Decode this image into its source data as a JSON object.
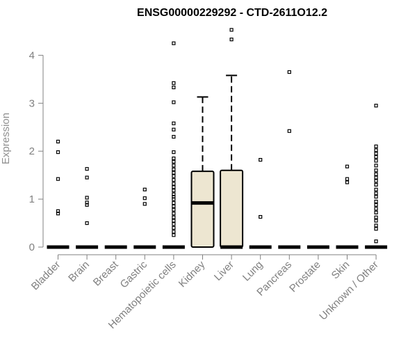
{
  "chart_data": {
    "type": "boxplot",
    "title": "ENSG00000229292 - CTD-2611O12.2",
    "ylabel": "Expression",
    "xlabel": "",
    "ylim": [
      0,
      4.6
    ],
    "yticks": [
      0,
      1,
      2,
      3,
      4
    ],
    "grid": false,
    "categories": [
      "Bladder",
      "Brain",
      "Breast",
      "Gastric",
      "Hematopoietic cells",
      "Kidney",
      "Liver",
      "Lung",
      "Pancreas",
      "Prostate",
      "Skin",
      "Unknown / Other"
    ],
    "boxes": [
      {
        "category": "Bladder",
        "min": 0,
        "q1": 0,
        "median": 0,
        "q3": 0,
        "max": 0,
        "outliers": [
          0.7,
          0.75,
          1.42,
          1.98,
          2.2
        ]
      },
      {
        "category": "Brain",
        "min": 0,
        "q1": 0,
        "median": 0,
        "q3": 0,
        "max": 0,
        "outliers": [
          0.5,
          0.88,
          0.93,
          1.03,
          1.45,
          1.63
        ]
      },
      {
        "category": "Breast",
        "min": 0,
        "q1": 0,
        "median": 0,
        "q3": 0,
        "max": 0,
        "outliers": []
      },
      {
        "category": "Gastric",
        "min": 0,
        "q1": 0,
        "median": 0,
        "q3": 0,
        "max": 0,
        "outliers": [
          0.9,
          1.02,
          1.2
        ]
      },
      {
        "category": "Hematopoietic cells",
        "min": 0,
        "q1": 0,
        "median": 0,
        "q3": 0,
        "max": 0,
        "outliers": [
          0.25,
          0.32,
          0.4,
          0.48,
          0.55,
          0.62,
          0.7,
          0.78,
          0.85,
          0.92,
          1.0,
          1.05,
          1.1,
          1.18,
          1.25,
          1.32,
          1.4,
          1.48,
          1.55,
          1.62,
          1.7,
          1.78,
          1.85,
          1.98,
          2.3,
          2.45,
          2.58,
          3.02,
          3.33,
          3.42,
          4.25
        ]
      },
      {
        "category": "Kidney",
        "min": 0,
        "q1": 0,
        "median": 0.92,
        "q3": 1.58,
        "max": 3.13,
        "outliers": []
      },
      {
        "category": "Liver",
        "min": 0,
        "q1": 0,
        "median": 0,
        "q3": 1.6,
        "max": 3.58,
        "outliers": [
          4.33,
          4.53
        ]
      },
      {
        "category": "Lung",
        "min": 0,
        "q1": 0,
        "median": 0,
        "q3": 0,
        "max": 0,
        "outliers": [
          0.63,
          1.82
        ]
      },
      {
        "category": "Pancreas",
        "min": 0,
        "q1": 0,
        "median": 0,
        "q3": 0,
        "max": 0,
        "outliers": [
          2.42,
          3.65
        ]
      },
      {
        "category": "Prostate",
        "min": 0,
        "q1": 0,
        "median": 0,
        "q3": 0,
        "max": 0,
        "outliers": []
      },
      {
        "category": "Skin",
        "min": 0,
        "q1": 0,
        "median": 0,
        "q3": 0,
        "max": 0,
        "outliers": [
          1.35,
          1.42,
          1.68
        ]
      },
      {
        "category": "Unknown / Other",
        "min": 0,
        "q1": 0,
        "median": 0,
        "q3": 0,
        "max": 0,
        "outliers": [
          0.12,
          0.38,
          0.45,
          0.55,
          0.62,
          0.72,
          0.8,
          0.88,
          0.95,
          1.05,
          1.12,
          1.2,
          1.3,
          1.38,
          1.45,
          1.52,
          1.6,
          1.7,
          1.8,
          1.88,
          1.95,
          2.02,
          2.1,
          2.95
        ]
      }
    ],
    "colors": {
      "box_fill": "#ede6d1",
      "box_stroke": "#000000",
      "axis": "#808080",
      "tick_label": "#808080",
      "ylabel": "#909090",
      "title": "#000000"
    }
  }
}
